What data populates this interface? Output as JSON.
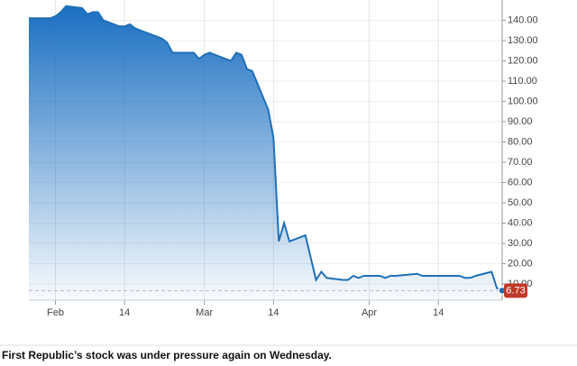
{
  "chart_data": {
    "type": "area",
    "caption": "First Republic’s stock was under pressure again on Wednesday.",
    "x": [
      "01-27",
      "01-30",
      "01-31",
      "02-01",
      "02-02",
      "02-03",
      "02-06",
      "02-07",
      "02-08",
      "02-09",
      "02-10",
      "02-13",
      "02-14",
      "02-15",
      "02-16",
      "02-17",
      "02-21",
      "02-22",
      "02-23",
      "02-24",
      "02-27",
      "02-28",
      "03-01",
      "03-02",
      "03-03",
      "03-06",
      "03-07",
      "03-08",
      "03-09",
      "03-10",
      "03-13",
      "03-14",
      "03-15",
      "03-16",
      "03-17",
      "03-20",
      "03-21",
      "03-22",
      "03-23",
      "03-24",
      "03-27",
      "03-28",
      "03-29",
      "03-30",
      "03-31",
      "04-03",
      "04-04",
      "04-05",
      "04-06",
      "04-10",
      "04-11",
      "04-12",
      "04-13",
      "04-14",
      "04-17",
      "04-18",
      "04-19",
      "04-20",
      "04-21",
      "04-24",
      "04-25",
      "04-26"
    ],
    "series": [
      {
        "color": "#1f6fb5",
        "values": [
          141,
          141,
          141,
          142,
          144,
          147,
          146,
          143,
          144,
          144,
          140,
          137,
          137,
          138,
          136,
          135,
          131,
          129,
          124,
          124,
          124,
          121,
          123,
          124,
          123,
          120,
          124,
          123,
          116,
          115,
          96,
          82,
          31,
          40,
          31,
          34,
          23,
          12,
          16,
          13,
          12,
          12,
          14,
          13,
          14,
          14,
          13,
          14,
          14,
          15,
          14,
          14,
          14,
          14,
          14,
          14,
          13,
          13,
          14,
          16,
          8,
          6.73
        ]
      }
    ],
    "xlim": [
      "01-27",
      "04-26"
    ],
    "xticks": [
      {
        "value": "02-01",
        "label": "Feb"
      },
      {
        "value": "02-14",
        "label": "14"
      },
      {
        "value": "03-01",
        "label": "Mar"
      },
      {
        "value": "03-14",
        "label": "14"
      },
      {
        "value": "04-01",
        "label": "Apr"
      },
      {
        "value": "04-14",
        "label": "14"
      }
    ],
    "ylim": [
      2,
      150
    ],
    "yticks": [
      {
        "value": 10,
        "label": "10.00"
      },
      {
        "value": 20,
        "label": "20.00"
      },
      {
        "value": 30,
        "label": "30.00"
      },
      {
        "value": 40,
        "label": "40.00"
      },
      {
        "value": 50,
        "label": "50.00"
      },
      {
        "value": 60,
        "label": "60.00"
      },
      {
        "value": 70,
        "label": "70.00"
      },
      {
        "value": 80,
        "label": "80.00"
      },
      {
        "value": 90,
        "label": "90.00"
      },
      {
        "value": 100,
        "label": "100.00"
      },
      {
        "value": 110,
        "label": "110.00"
      },
      {
        "value": 120,
        "label": "120.00"
      },
      {
        "value": 130,
        "label": "130.00"
      },
      {
        "value": 140,
        "label": "140.00"
      }
    ],
    "grid": true,
    "flag_color": "#c0392b"
  }
}
